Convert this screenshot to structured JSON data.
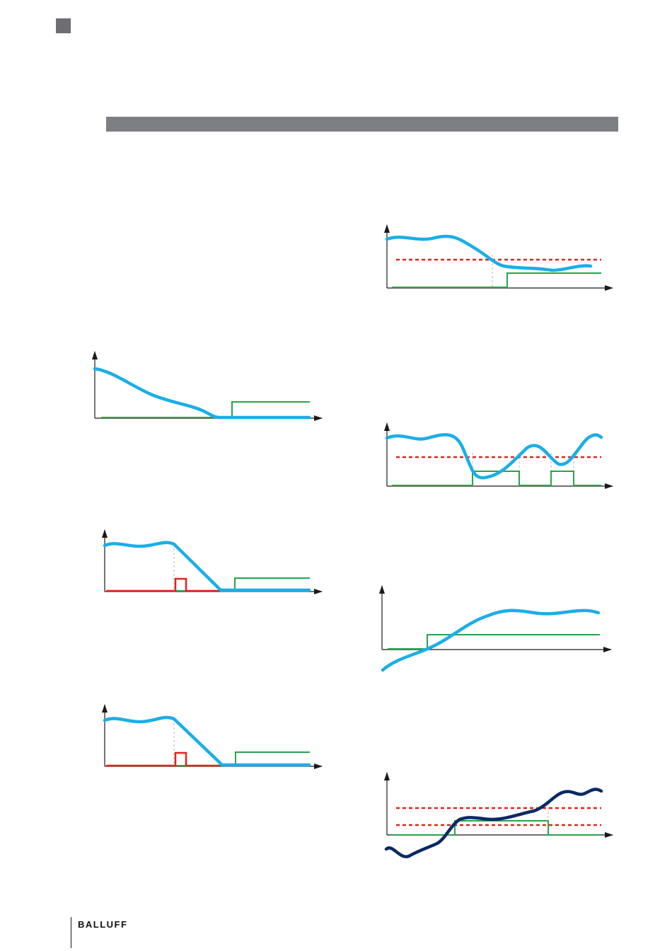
{
  "footer": {
    "brand": "BALLUFF"
  },
  "colors": {
    "signal": "#1aaee8",
    "signal_dark": "#0a2a66",
    "switch_output": "#2aa34a",
    "threshold": "#e0231c",
    "pulse": "#e0231c",
    "axis": "#1a1a1a",
    "guide": "#b5b5b5",
    "header_bar": "#7d7f83",
    "corner_square": "#6d6e71"
  },
  "diagrams": [
    {
      "id": "fig-a",
      "type": "signal-and-switching-output",
      "threshold_lines": 0,
      "marks": [
        "signal",
        "switch-output"
      ]
    },
    {
      "id": "fig-b",
      "type": "signal-and-switching-output",
      "threshold_lines": 0,
      "marks": [
        "signal",
        "pulse",
        "switch-output"
      ]
    },
    {
      "id": "fig-c",
      "type": "signal-and-switching-output",
      "threshold_lines": 0,
      "marks": [
        "signal",
        "pulse",
        "switch-output"
      ]
    },
    {
      "id": "fig-d",
      "type": "signal-and-switching-output",
      "threshold_lines": 1,
      "marks": [
        "signal",
        "threshold",
        "switch-output"
      ]
    },
    {
      "id": "fig-e",
      "type": "signal-and-switching-output",
      "threshold_lines": 1,
      "marks": [
        "signal",
        "threshold",
        "switch-output"
      ]
    },
    {
      "id": "fig-f",
      "type": "signal-and-switching-output",
      "threshold_lines": 0,
      "marks": [
        "signal",
        "switch-output"
      ]
    },
    {
      "id": "fig-g",
      "type": "signal-and-switching-output",
      "threshold_lines": 2,
      "marks": [
        "signal",
        "threshold",
        "threshold",
        "switch-output"
      ]
    }
  ]
}
